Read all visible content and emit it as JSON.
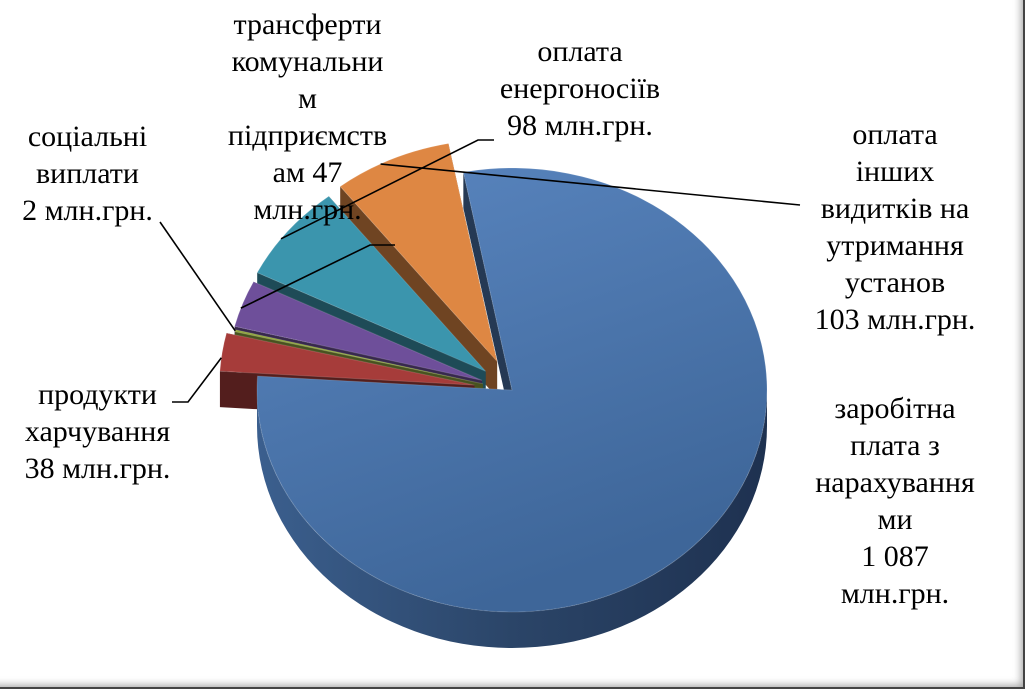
{
  "chart_data": {
    "type": "pie",
    "style": "3d-exploded",
    "unit": "млн.грн.",
    "slices": [
      {
        "key": "salary",
        "value": 1087,
        "color": "#4A72A8",
        "label_lines": [
          "заробітна",
          "плата з",
          "нарахування",
          "ми",
          "1 087",
          "млн.грн."
        ]
      },
      {
        "key": "food",
        "value": 38,
        "color": "#A63C3A",
        "label_lines": [
          "продукти",
          "харчування",
          "38 млн.грн."
        ]
      },
      {
        "key": "social",
        "value": 2,
        "color": "#8FA33E",
        "label_lines": [
          "соціальні",
          "виплати",
          "2 млн.грн."
        ]
      },
      {
        "key": "transfers",
        "value": 47,
        "color": "#6E4F9A",
        "label_lines": [
          "трансферти",
          "комунальни",
          "м",
          "підприємств",
          "ам 47",
          "млн.грн."
        ]
      },
      {
        "key": "energy",
        "value": 98,
        "color": "#3B95AD",
        "label_lines": [
          "оплата",
          "енергоносіїв",
          "98 млн.грн."
        ]
      },
      {
        "key": "other",
        "value": 103,
        "color": "#DE8743",
        "label_lines": [
          "оплата",
          "інших",
          "видитків на",
          "утримання",
          "установ",
          "103 млн.грн."
        ]
      }
    ]
  }
}
